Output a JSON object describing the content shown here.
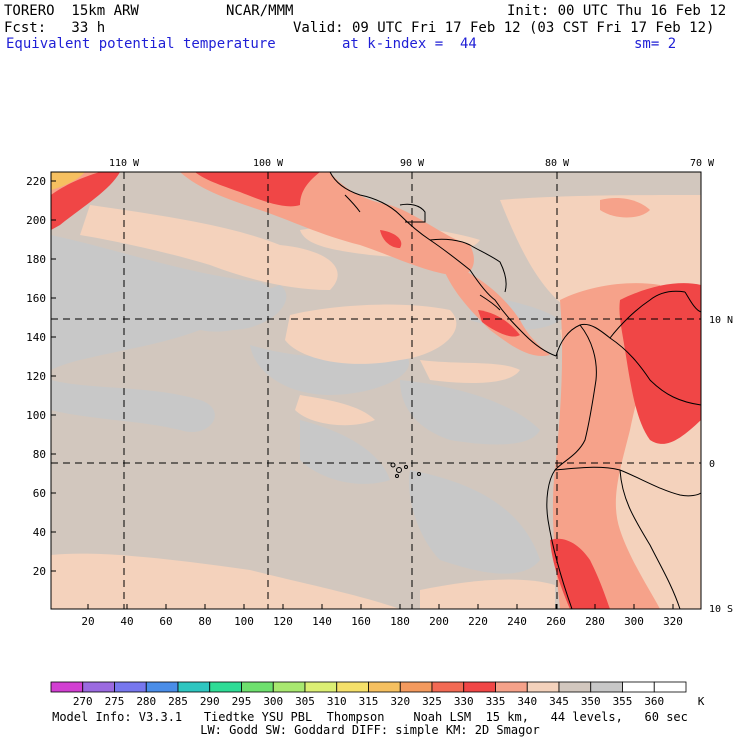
{
  "header": {
    "model": "TORERO  15km ARW",
    "center": "NCAR/MMM",
    "init": "Init: 00 UTC Thu 16 Feb 12",
    "fcst": "Fcst:   33 h",
    "valid": "Valid: 09 UTC Fri 17 Feb 12 (03 CST Fri 17 Feb 12)",
    "field": "Equivalent potential temperature",
    "level": "at k-index =  44",
    "smooth": "sm= 2"
  },
  "axes": {
    "lon_labels": [
      "110 W",
      "100 W",
      "90 W",
      "80 W",
      "70 W"
    ],
    "lat_labels": [
      "10 N",
      "0",
      "10 S"
    ],
    "y_ticks": [
      "220",
      "200",
      "180",
      "160",
      "140",
      "120",
      "100",
      "80",
      "60",
      "40",
      "20"
    ],
    "x_ticks": [
      "20",
      "40",
      "60",
      "80",
      "100",
      "120",
      "140",
      "160",
      "180",
      "200",
      "220",
      "240",
      "260",
      "280",
      "300",
      "320"
    ]
  },
  "colorbar": {
    "unit": "K",
    "levels": [
      "270",
      "275",
      "280",
      "285",
      "290",
      "295",
      "300",
      "305",
      "310",
      "315",
      "320",
      "325",
      "330",
      "335",
      "340",
      "345",
      "350",
      "355",
      "360"
    ],
    "colors": [
      "#d23fd2",
      "#9b6ae0",
      "#7777ee",
      "#4a8de8",
      "#2ec6c0",
      "#2edc96",
      "#6ee06e",
      "#a8e870",
      "#dcef74",
      "#f5e06a",
      "#f6c060",
      "#f49a5e",
      "#f26a54",
      "#f04646",
      "#f6a28a",
      "#f4d2bc",
      "#d2c7be",
      "#c8c8c8",
      "#ffffff",
      "#ffffff"
    ]
  },
  "footer": {
    "line1": "Model Info: V3.3.1   Tiedtke YSU PBL  Thompson    Noah LSM  15 km,   44 levels,   60 sec",
    "line2": "LW: Godd SW: Goddard DIFF: simple KM: 2D Smagor"
  }
}
